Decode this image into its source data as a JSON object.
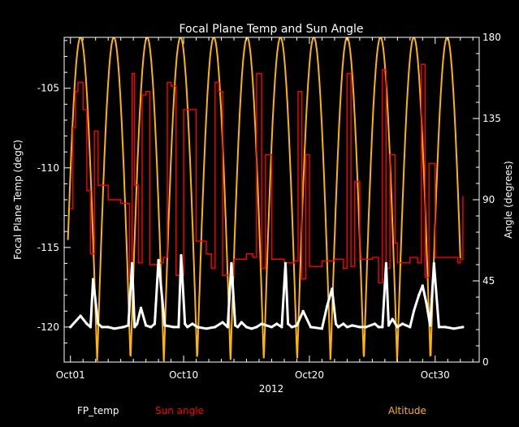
{
  "chart_data": {
    "type": "line",
    "title": "Focal Plane Temp and Sun Angle",
    "xlabel": "2012",
    "ylabel_left": "Focal Plane Temp (degC)",
    "ylabel_right": "Angle (degrees)",
    "x_unit": "day of October 2012",
    "xlim": [
      0.5,
      33.5
    ],
    "ylim_left": [
      -122.2,
      -101.8
    ],
    "ylim_right": [
      0,
      180
    ],
    "x_ticks": [
      {
        "label": "Oct01",
        "x": 1
      },
      {
        "label": "Oct10",
        "x": 10
      },
      {
        "label": "Oct20",
        "x": 20
      },
      {
        "label": "Oct30",
        "x": 30
      }
    ],
    "y_ticks_left": [
      -105,
      -110,
      -115,
      -120
    ],
    "y_ticks_right": [
      0,
      45,
      90,
      135,
      180
    ],
    "legend": [
      {
        "label": "FP_temp",
        "color": "#ffffff"
      },
      {
        "label": "Sun angle",
        "color": "#ff0000"
      },
      {
        "label": "Altitude",
        "color": "#ffb400"
      }
    ],
    "series": [
      {
        "name": "FP_temp",
        "axis": "left",
        "color": "#ffffff",
        "x": [
          1.0,
          1.8,
          2.3,
          2.6,
          2.8,
          3.2,
          3.5,
          4.0,
          4.5,
          5.2,
          5.6,
          5.9,
          6.1,
          6.3,
          6.6,
          7.0,
          7.4,
          7.7,
          8.0,
          8.5,
          9.2,
          9.6,
          9.8,
          10.1,
          10.3,
          10.7,
          11.1,
          11.8,
          12.5,
          13.1,
          13.5,
          13.8,
          14.1,
          14.3,
          14.6,
          15.0,
          15.4,
          15.8,
          16.2,
          17.0,
          17.4,
          17.8,
          18.1,
          18.3,
          18.6,
          19.0,
          19.5,
          20.1,
          21.0,
          21.4,
          21.8,
          22.1,
          22.3,
          22.7,
          23.0,
          23.4,
          24.0,
          24.5,
          25.2,
          25.5,
          25.8,
          26.1,
          26.3,
          26.6,
          27.0,
          27.4,
          28.0,
          28.3,
          28.7,
          29.0,
          29.3,
          29.6,
          29.9,
          30.3,
          30.8,
          31.5,
          32.2
        ],
        "y": [
          -120.0,
          -119.3,
          -119.8,
          -120.0,
          -117.0,
          -119.8,
          -120.0,
          -120.0,
          -120.1,
          -120.0,
          -119.9,
          -116.0,
          -120.0,
          -119.8,
          -118.8,
          -119.9,
          -120.0,
          -119.8,
          -115.8,
          -119.9,
          -120.0,
          -120.0,
          -115.5,
          -119.8,
          -120.0,
          -119.8,
          -120.0,
          -120.1,
          -120.0,
          -119.7,
          -120.0,
          -116.0,
          -119.9,
          -120.0,
          -119.7,
          -120.0,
          -120.1,
          -120.0,
          -119.8,
          -120.0,
          -119.8,
          -120.0,
          -116.0,
          -119.8,
          -120.0,
          -119.9,
          -119.0,
          -120.0,
          -120.1,
          -118.7,
          -117.6,
          -119.8,
          -120.0,
          -119.8,
          -120.0,
          -119.9,
          -120.0,
          -120.0,
          -119.8,
          -120.0,
          -120.0,
          -116.0,
          -119.9,
          -119.5,
          -120.0,
          -119.8,
          -120.0,
          -119.0,
          -118.0,
          -117.4,
          -118.5,
          -119.9,
          -116.0,
          -120.0,
          -120.0,
          -120.1,
          -120.0
        ]
      },
      {
        "name": "Sun angle",
        "axis": "right",
        "color": "#ff0000",
        "x": [
          1.0,
          1.2,
          1.4,
          1.6,
          2.0,
          2.3,
          2.6,
          2.9,
          3.2,
          4.0,
          5.0,
          5.7,
          5.9,
          6.1,
          6.4,
          6.7,
          7.0,
          7.3,
          8.0,
          8.4,
          8.7,
          9.0,
          9.4,
          10.0,
          11.0,
          11.8,
          12.2,
          12.5,
          12.8,
          13.1,
          14.0,
          15.0,
          15.5,
          15.8,
          16.2,
          16.5,
          17.0,
          18.0,
          18.8,
          19.1,
          19.4,
          19.7,
          20.0,
          21.0,
          22.0,
          22.7,
          23.0,
          23.3,
          23.6,
          24.0,
          25.0,
          25.5,
          25.8,
          26.1,
          26.4,
          26.8,
          27.0,
          28.0,
          28.6,
          28.9,
          29.2,
          29.5,
          30.0,
          31.0,
          31.8,
          32.0,
          32.2
        ],
        "y": [
          85,
          130,
          150,
          155,
          140,
          95,
          60,
          128,
          98,
          90,
          88,
          46,
          160,
          98,
          55,
          148,
          150,
          54,
          55,
          58,
          155,
          153,
          48,
          140,
          67,
          60,
          52,
          155,
          150,
          48,
          57,
          60,
          58,
          160,
          52,
          115,
          57,
          55,
          56,
          150,
          46,
          115,
          53,
          56,
          57,
          52,
          160,
          53,
          100,
          57,
          58,
          44,
          162,
          52,
          115,
          66,
          55,
          58,
          55,
          165,
          47,
          110,
          58,
          58,
          55,
          57,
          92
        ]
      },
      {
        "name": "Altitude",
        "axis": "right",
        "color": "#ffb400",
        "period_days": 2.65,
        "peak_days": [
          1.8,
          4.45,
          7.1,
          9.75,
          12.4,
          15.05,
          17.7,
          20.35,
          23.0,
          25.65,
          28.3,
          30.95
        ],
        "min": 0,
        "max": 180
      }
    ]
  }
}
